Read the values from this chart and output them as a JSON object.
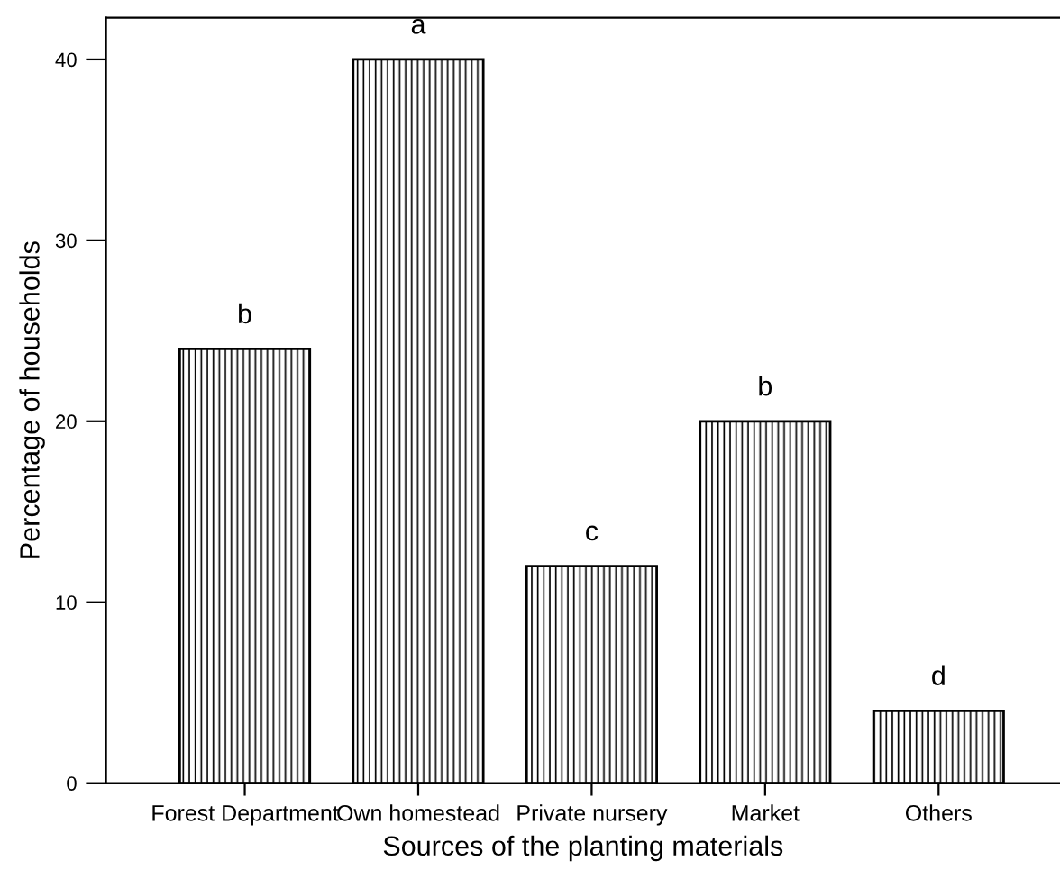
{
  "chart_data": {
    "type": "bar",
    "xlabel": "Sources of the planting materials",
    "ylabel": "Percentage of households",
    "categories": [
      "Forest Department",
      "Own homestead",
      "Private nursery",
      "Market",
      "Others"
    ],
    "values": [
      24,
      40,
      12,
      20,
      4
    ],
    "color": "#000000",
    "ylim": [
      0,
      42.3
    ],
    "yticks": [
      0,
      10,
      20,
      30,
      40
    ],
    "grid": false,
    "legend": false,
    "annotations": [
      {
        "text": "b",
        "x": "Forest Department",
        "y": 24
      },
      {
        "text": "a",
        "x": "Own homestead",
        "y": 40
      },
      {
        "text": "c",
        "x": "Private nursery",
        "y": 12
      },
      {
        "text": "b",
        "x": "Market",
        "y": 20
      },
      {
        "text": "d",
        "x": "Others",
        "y": 4
      }
    ]
  }
}
